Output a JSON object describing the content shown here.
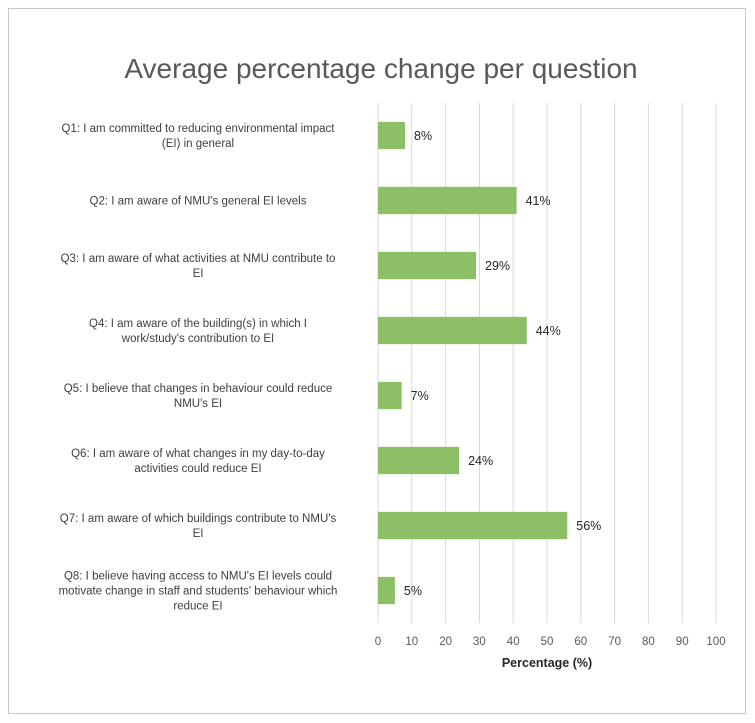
{
  "chart_data": {
    "type": "bar",
    "orientation": "horizontal",
    "title": "Average percentage change per question",
    "xlabel": "Percentage (%)",
    "ylabel": "",
    "xlim": [
      0,
      100
    ],
    "xticks": [
      "0",
      "10",
      "20",
      "30",
      "40",
      "50",
      "60",
      "70",
      "80",
      "90",
      "100"
    ],
    "grid": true,
    "bar_color": "#8dbf67",
    "categories": [
      [
        "Q1: I am committed to reducing environmental impact",
        "(EI) in general"
      ],
      [
        "Q2: I am aware of NMU's general EI levels"
      ],
      [
        "Q3: I am aware of what activities at NMU contribute to",
        "EI"
      ],
      [
        "Q4: I am aware of the building(s) in which I",
        "work/study's contribution to EI"
      ],
      [
        "Q5: I believe that changes in behaviour could reduce",
        "NMU's EI"
      ],
      [
        "Q6: I am aware of what changes in my day-to-day",
        "activities could reduce EI"
      ],
      [
        "Q7: I am aware of which buildings contribute to NMU's",
        "EI"
      ],
      [
        "Q8: I believe having access to NMU's EI levels could",
        "motivate change in staff and students' behaviour which",
        "reduce EI"
      ]
    ],
    "values": [
      8,
      41,
      29,
      44,
      7,
      24,
      56,
      5
    ],
    "data_labels": [
      "8%",
      "41%",
      "29%",
      "44%",
      "7%",
      "24%",
      "56%",
      "5%"
    ]
  }
}
